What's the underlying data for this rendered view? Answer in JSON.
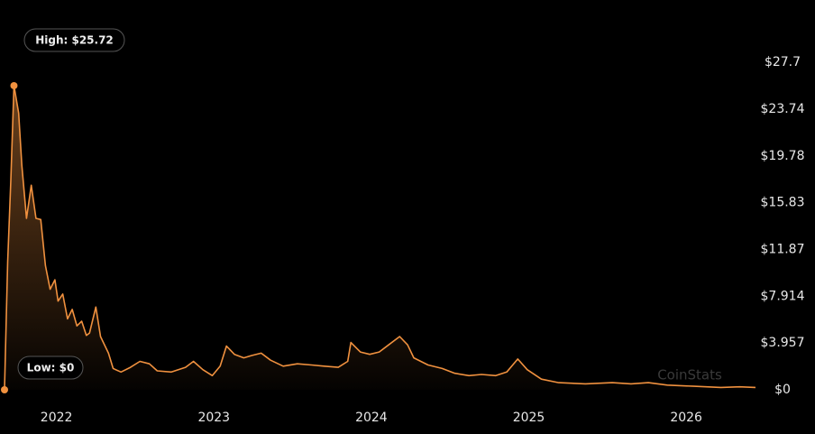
{
  "chart_data": {
    "type": "area",
    "color": "#f0913f",
    "background": "#000000",
    "high_label": "High: $25.72",
    "low_label": "Low: $0",
    "watermark": "CoinStats",
    "x": [
      2021.67,
      2021.69,
      2021.71,
      2021.73,
      2021.76,
      2021.78,
      2021.81,
      2021.84,
      2021.87,
      2021.9,
      2021.93,
      2021.96,
      2021.99,
      2022.01,
      2022.04,
      2022.07,
      2022.1,
      2022.13,
      2022.16,
      2022.19,
      2022.21,
      2022.25,
      2022.28,
      2022.33,
      2022.36,
      2022.41,
      2022.47,
      2022.53,
      2022.59,
      2022.64,
      2022.73,
      2022.82,
      2022.87,
      2022.93,
      2022.99,
      2023.04,
      2023.08,
      2023.13,
      2023.19,
      2023.24,
      2023.3,
      2023.36,
      2023.44,
      2023.53,
      2023.62,
      2023.7,
      2023.79,
      2023.85,
      2023.87,
      2023.93,
      2023.99,
      2024.05,
      2024.11,
      2024.18,
      2024.23,
      2024.27,
      2024.36,
      2024.45,
      2024.53,
      2024.62,
      2024.7,
      2024.79,
      2024.86,
      2024.93,
      2024.99,
      2025.08,
      2025.19,
      2025.36,
      2025.53,
      2025.65,
      2025.76,
      2025.88,
      2026.05,
      2026.22,
      2026.34,
      2026.44
    ],
    "series": [
      {
        "values": [
          0,
          10.8,
          17.7,
          25.72,
          23.4,
          19,
          14.5,
          17.3,
          14.5,
          14.4,
          10.5,
          8.5,
          9.3,
          7.5,
          8.1,
          6.0,
          6.8,
          5.4,
          5.8,
          4.6,
          4.8,
          7.0,
          4.5,
          3.1,
          1.8,
          1.5,
          1.9,
          2.4,
          2.2,
          1.6,
          1.5,
          1.9,
          2.4,
          1.7,
          1.2,
          2.0,
          3.7,
          3.0,
          2.7,
          2.9,
          3.1,
          2.5,
          2.0,
          2.2,
          2.1,
          2.0,
          1.9,
          2.4,
          4.0,
          3.2,
          3.0,
          3.2,
          3.8,
          4.5,
          3.8,
          2.7,
          2.1,
          1.8,
          1.4,
          1.2,
          1.3,
          1.2,
          1.5,
          2.6,
          1.7,
          0.9,
          0.6,
          0.5,
          0.6,
          0.5,
          0.6,
          0.4,
          0.3,
          0.2,
          0.25,
          0.2
        ]
      }
    ],
    "xlim": [
      2021.67,
      2026.44
    ],
    "xticks": [
      2022,
      2023,
      2024,
      2025,
      2026
    ],
    "ylim": [
      0,
      27.7
    ],
    "yticks": [
      {
        "value": 0,
        "label": "$0"
      },
      {
        "value": 3.957,
        "label": "$3.957"
      },
      {
        "value": 7.914,
        "label": "$7.914"
      },
      {
        "value": 11.87,
        "label": "$11.87"
      },
      {
        "value": 15.83,
        "label": "$15.83"
      },
      {
        "value": 19.78,
        "label": "$19.78"
      },
      {
        "value": 23.74,
        "label": "$23.74"
      },
      {
        "value": 27.7,
        "label": "$27.7"
      }
    ]
  }
}
